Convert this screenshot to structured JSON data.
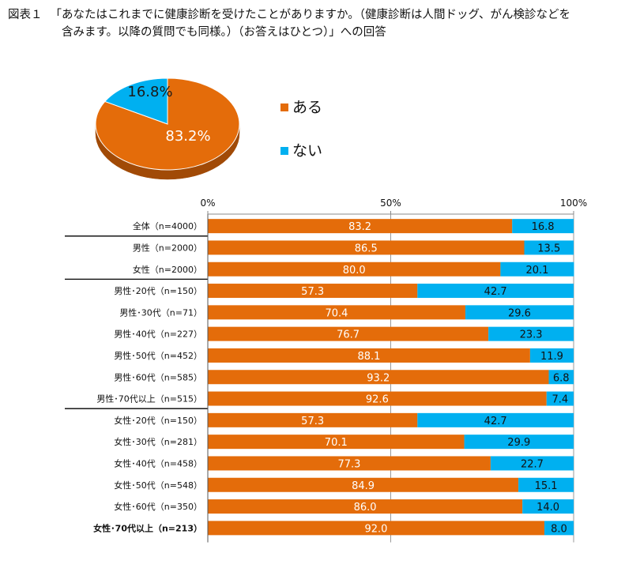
{
  "title": {
    "figure_label": "図表１",
    "line1": "「あなたはこれまでに健康診断を受けたことがありますか。（健康診断は人間ドッグ、がん検診などを",
    "line2": "含みます。以降の質問でも同様。）（お答えはひとつ）」への回答"
  },
  "colors": {
    "orange": "#E46C0A",
    "blue": "#00B0F0",
    "orange_dark": "#A14A06",
    "blue_dark": "#007BA8"
  },
  "chart_data": [
    {
      "type": "pie",
      "title": "",
      "slices": [
        {
          "label": "ある",
          "value": 83.2,
          "display": "83.2%"
        },
        {
          "label": "ない",
          "value": 16.8,
          "display": "16.8%"
        }
      ],
      "legend_position": "right"
    },
    {
      "type": "bar",
      "orientation": "horizontal",
      "stacked": true,
      "xlim": [
        0,
        100
      ],
      "x_ticks": [
        "0%",
        "50%",
        "100%"
      ],
      "categories": [
        "全体（n=4000）",
        "男性（n=2000）",
        "女性（n=2000）",
        "男性･20代（n=150）",
        "男性･30代（n=71）",
        "男性･40代（n=227）",
        "男性･50代（n=452）",
        "男性･60代（n=585）",
        "男性･70代以上（n=515）",
        "女性･20代（n=150）",
        "女性･30代（n=281）",
        "女性･40代（n=458）",
        "女性･50代（n=548）",
        "女性･60代（n=350）",
        "女性･70代以上（n=213）"
      ],
      "bold_categories": [
        14
      ],
      "group_separators_after": [
        0,
        2,
        8
      ],
      "series": [
        {
          "name": "ある",
          "values": [
            83.2,
            86.5,
            80.0,
            57.3,
            70.4,
            76.7,
            88.1,
            93.2,
            92.6,
            57.3,
            70.1,
            77.3,
            84.9,
            86.0,
            92.0
          ],
          "labels": [
            "83.2",
            "86.5",
            "80.0",
            "57.3",
            "70.4",
            "76.7",
            "88.1",
            "93.2",
            "92.6",
            "57.3",
            "70.1",
            "77.3",
            "84.9",
            "86.0",
            "92.0"
          ]
        },
        {
          "name": "ない",
          "values": [
            16.8,
            13.5,
            20.1,
            42.7,
            29.6,
            23.3,
            11.9,
            6.8,
            7.4,
            42.7,
            29.9,
            22.7,
            15.1,
            14.0,
            8.0
          ],
          "labels": [
            "16.8",
            "13.5",
            "20.1",
            "42.7",
            "29.6",
            "23.3",
            "11.9",
            "6.8",
            "7.4",
            "42.7",
            "29.9",
            "22.7",
            "15.1",
            "14.0",
            "8.0"
          ]
        }
      ]
    }
  ]
}
